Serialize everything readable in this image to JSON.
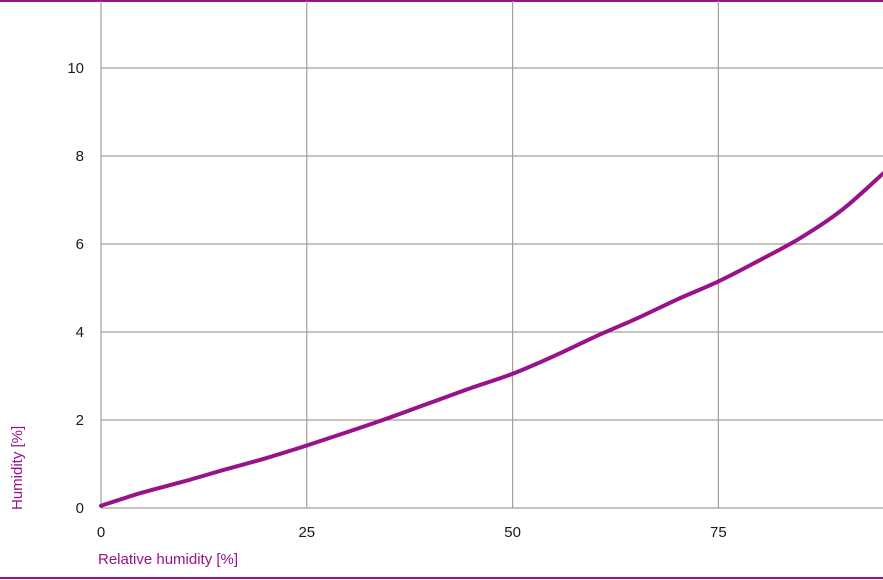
{
  "colors": {
    "accent": "#97128b",
    "grid": "#a39f98",
    "text": "#1a1a1a"
  },
  "chart_data": {
    "type": "line",
    "xlabel": "Relative humidity [%]",
    "ylabel": "Humidity [%]",
    "xlim": [
      0,
      95
    ],
    "ylim": [
      0,
      11
    ],
    "x_ticks": [
      0,
      25,
      50,
      75
    ],
    "y_ticks": [
      0,
      2,
      4,
      6,
      8,
      10
    ],
    "x_tick_labels": [
      "0",
      "25",
      "50",
      "75"
    ],
    "y_tick_labels": [
      "0",
      "2",
      "4",
      "6",
      "8",
      "10"
    ],
    "grid": true,
    "series": [
      {
        "x": [
          0,
          5,
          10,
          15,
          20,
          25,
          30,
          35,
          40,
          45,
          50,
          55,
          60,
          65,
          70,
          75,
          80,
          85,
          90,
          95
        ],
        "y": [
          0.05,
          0.35,
          0.6,
          0.87,
          1.13,
          1.42,
          1.73,
          2.05,
          2.39,
          2.73,
          3.05,
          3.45,
          3.89,
          4.3,
          4.74,
          5.15,
          5.63,
          6.14,
          6.77,
          7.6
        ]
      }
    ]
  }
}
